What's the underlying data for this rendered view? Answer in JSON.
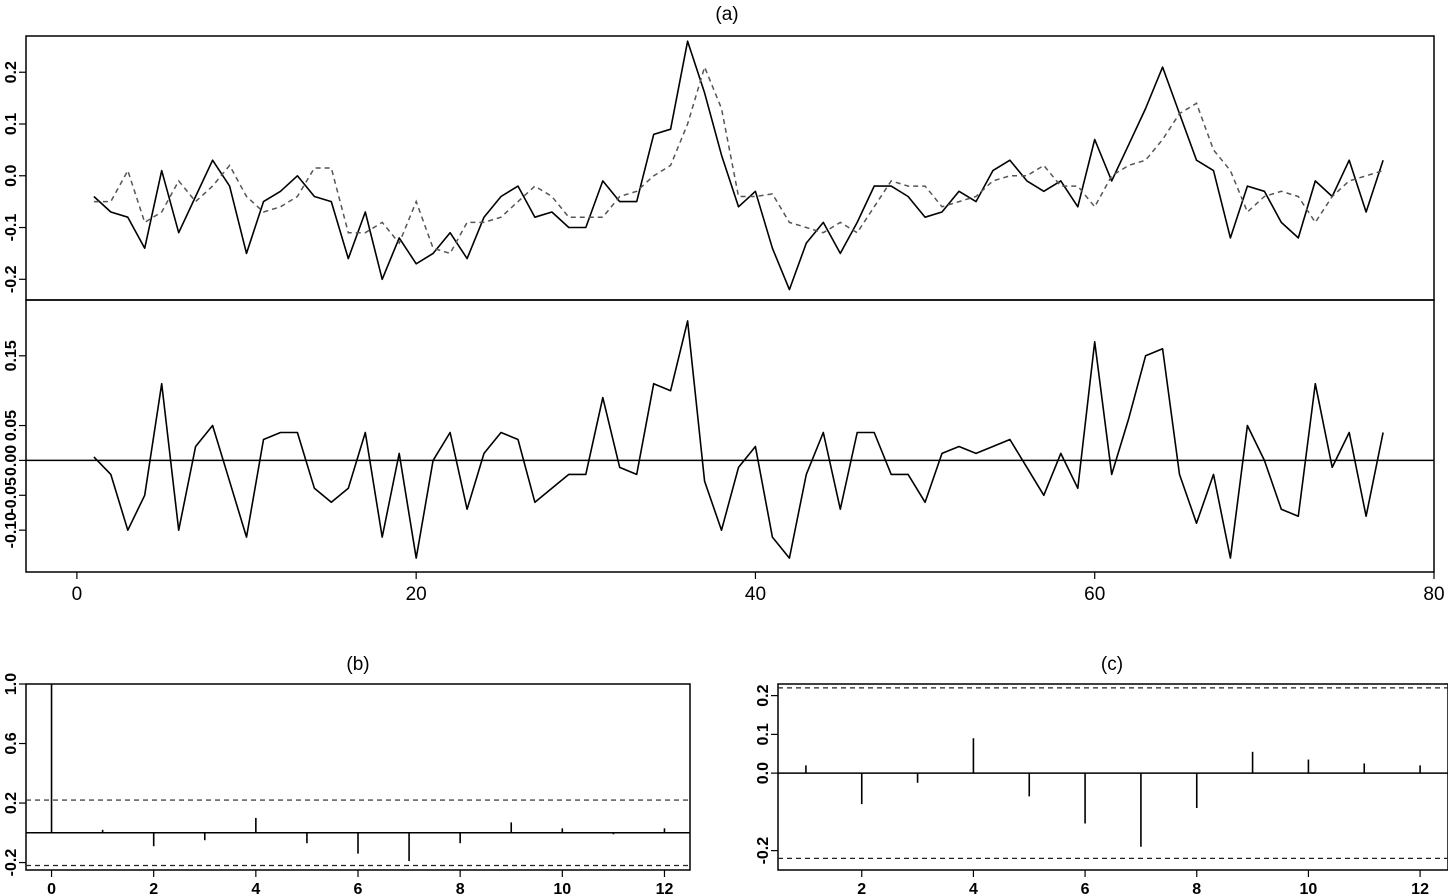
{
  "chart_data": [
    {
      "id": "a",
      "type": "line",
      "title": "(a)",
      "ylim": [
        -0.24,
        0.27
      ],
      "yticks": [
        -0.2,
        -0.1,
        0.0,
        0.1,
        0.2
      ],
      "ytick_labels": [
        "-0.2",
        "-0.1",
        "0.0",
        "0.1",
        "0.2"
      ],
      "xlim": [
        -3,
        80
      ],
      "series": [
        {
          "style": "solid",
          "x": [
            1,
            2,
            3,
            4,
            5,
            6,
            7,
            8,
            9,
            10,
            11,
            12,
            13,
            14,
            15,
            16,
            17,
            18,
            19,
            20,
            21,
            22,
            23,
            24,
            25,
            26,
            27,
            28,
            29,
            30,
            31,
            32,
            33,
            34,
            35,
            36,
            37,
            38,
            39,
            40,
            41,
            42,
            43,
            44,
            45,
            46,
            47,
            48,
            49,
            50,
            51,
            52,
            53,
            54,
            55,
            56,
            57,
            58,
            59,
            60,
            61,
            62,
            63,
            64,
            65,
            66,
            67,
            68,
            69,
            70,
            71,
            72,
            73,
            74,
            75,
            76,
            77
          ],
          "y": [
            -0.04,
            -0.07,
            -0.08,
            -0.14,
            0.01,
            -0.11,
            -0.04,
            0.03,
            -0.02,
            -0.15,
            -0.05,
            -0.03,
            0.0,
            -0.04,
            -0.05,
            -0.16,
            -0.07,
            -0.2,
            -0.12,
            -0.17,
            -0.15,
            -0.11,
            -0.16,
            -0.08,
            -0.04,
            -0.02,
            -0.08,
            -0.07,
            -0.1,
            -0.1,
            -0.01,
            -0.05,
            -0.05,
            0.08,
            0.09,
            0.26,
            0.16,
            0.04,
            -0.06,
            -0.03,
            -0.14,
            -0.22,
            -0.13,
            -0.09,
            -0.15,
            -0.09,
            -0.02,
            -0.02,
            -0.04,
            -0.08,
            -0.07,
            -0.03,
            -0.05,
            0.01,
            0.03,
            -0.01,
            -0.03,
            -0.01,
            -0.06,
            0.07,
            -0.01,
            0.06,
            0.13,
            0.21,
            0.12,
            0.03,
            0.01,
            -0.12,
            -0.02,
            -0.03,
            -0.09,
            -0.12,
            -0.01,
            -0.04,
            0.03,
            -0.07,
            0.03
          ]
        },
        {
          "style": "dashed",
          "x": [
            1,
            2,
            3,
            4,
            5,
            6,
            7,
            8,
            9,
            10,
            11,
            12,
            13,
            14,
            15,
            16,
            17,
            18,
            19,
            20,
            21,
            22,
            23,
            24,
            25,
            26,
            27,
            28,
            29,
            30,
            31,
            32,
            33,
            34,
            35,
            36,
            37,
            38,
            39,
            40,
            41,
            42,
            43,
            44,
            45,
            46,
            47,
            48,
            49,
            50,
            51,
            52,
            53,
            54,
            55,
            56,
            57,
            58,
            59,
            60,
            61,
            62,
            63,
            64,
            65,
            66,
            67,
            68,
            69,
            70,
            71,
            72,
            73,
            74,
            75,
            76,
            77
          ],
          "y": [
            -0.05,
            -0.05,
            0.01,
            -0.09,
            -0.07,
            -0.01,
            -0.05,
            -0.02,
            0.02,
            -0.04,
            -0.07,
            -0.06,
            -0.04,
            0.015,
            0.015,
            -0.11,
            -0.11,
            -0.09,
            -0.13,
            -0.05,
            -0.14,
            -0.15,
            -0.09,
            -0.09,
            -0.08,
            -0.05,
            -0.02,
            -0.04,
            -0.08,
            -0.08,
            -0.08,
            -0.04,
            -0.03,
            0.0,
            0.02,
            0.1,
            0.21,
            0.13,
            -0.04,
            -0.04,
            -0.035,
            -0.09,
            -0.1,
            -0.11,
            -0.09,
            -0.11,
            -0.06,
            -0.01,
            -0.02,
            -0.02,
            -0.06,
            -0.05,
            -0.04,
            -0.01,
            0.0,
            0.0,
            0.02,
            -0.02,
            -0.02,
            -0.06,
            0.0,
            0.02,
            0.03,
            0.07,
            0.12,
            0.14,
            0.05,
            0.01,
            -0.07,
            -0.04,
            -0.03,
            -0.04,
            -0.09,
            -0.04,
            -0.01,
            0.0,
            0.01
          ]
        }
      ]
    },
    {
      "id": "a2",
      "type": "line",
      "ylim": [
        -0.16,
        0.23
      ],
      "yticks": [
        -0.1,
        -0.05,
        0.0,
        0.05,
        0.15
      ],
      "ytick_labels": [
        "-0.10",
        "-0.05",
        "0.00",
        "0.05",
        "0.15"
      ],
      "xlim": [
        -3,
        80
      ],
      "xticks": [
        0,
        20,
        40,
        60,
        80
      ],
      "xtick_labels": [
        "0",
        "20",
        "40",
        "60",
        "80"
      ],
      "hline": 0,
      "series": [
        {
          "style": "solid",
          "x": [
            1,
            2,
            3,
            4,
            5,
            6,
            7,
            8,
            9,
            10,
            11,
            12,
            13,
            14,
            15,
            16,
            17,
            18,
            19,
            20,
            21,
            22,
            23,
            24,
            25,
            26,
            27,
            28,
            29,
            30,
            31,
            32,
            33,
            34,
            35,
            36,
            37,
            38,
            39,
            40,
            41,
            42,
            43,
            44,
            45,
            46,
            47,
            48,
            49,
            50,
            51,
            52,
            53,
            54,
            55,
            56,
            57,
            58,
            59,
            60,
            61,
            62,
            63,
            64,
            65,
            66,
            67,
            68,
            69,
            70,
            71,
            72,
            73,
            74,
            75,
            76,
            77
          ],
          "y": [
            0.005,
            -0.02,
            -0.1,
            -0.05,
            0.11,
            -0.1,
            0.02,
            0.05,
            -0.03,
            -0.11,
            0.03,
            0.04,
            0.04,
            -0.04,
            -0.06,
            -0.04,
            0.04,
            -0.11,
            0.01,
            -0.14,
            0.0,
            0.04,
            -0.07,
            0.01,
            0.04,
            0.03,
            -0.06,
            -0.04,
            -0.02,
            -0.02,
            0.09,
            -0.01,
            -0.02,
            0.11,
            0.1,
            0.2,
            -0.03,
            -0.1,
            -0.01,
            0.02,
            -0.11,
            -0.14,
            -0.02,
            0.04,
            -0.07,
            0.04,
            0.04,
            -0.02,
            -0.02,
            -0.06,
            0.01,
            0.02,
            0.01,
            0.02,
            0.03,
            -0.01,
            -0.05,
            0.01,
            -0.04,
            0.17,
            -0.02,
            0.06,
            0.15,
            0.16,
            -0.02,
            -0.09,
            -0.02,
            -0.14,
            0.05,
            0.0,
            -0.07,
            -0.08,
            0.11,
            -0.01,
            0.04,
            -0.08,
            0.04
          ]
        }
      ]
    },
    {
      "id": "b",
      "type": "bar",
      "title": "(b)",
      "xlim": [
        -0.5,
        12.5
      ],
      "ylim": [
        -0.25,
        1.0
      ],
      "yticks": [
        -0.2,
        0.2,
        0.6,
        1.0
      ],
      "ytick_labels": [
        "-0.2",
        "0.2",
        "0.6",
        "1.0"
      ],
      "xticks": [
        0,
        2,
        4,
        6,
        8,
        10,
        12
      ],
      "xtick_labels": [
        "0",
        "2",
        "4",
        "6",
        "8",
        "10",
        "12"
      ],
      "confidence": 0.22,
      "lags": [
        0,
        1,
        2,
        3,
        4,
        5,
        6,
        7,
        8,
        9,
        10,
        11,
        12
      ],
      "values": [
        1.0,
        0.02,
        -0.09,
        -0.05,
        0.1,
        -0.07,
        -0.14,
        -0.19,
        -0.07,
        0.07,
        0.03,
        -0.01,
        0.03
      ]
    },
    {
      "id": "c",
      "type": "bar",
      "title": "(c)",
      "xlim": [
        0.5,
        12.5
      ],
      "ylim": [
        -0.25,
        0.23
      ],
      "yticks": [
        -0.2,
        0.0,
        0.1,
        0.2
      ],
      "ytick_labels": [
        "-0.2",
        "0.0",
        "0.1",
        "0.2"
      ],
      "xticks": [
        2,
        4,
        6,
        8,
        10,
        12
      ],
      "xtick_labels": [
        "2",
        "4",
        "6",
        "8",
        "10",
        "12"
      ],
      "confidence": 0.22,
      "lags": [
        1,
        2,
        3,
        4,
        5,
        6,
        7,
        8,
        9,
        10,
        11,
        12
      ],
      "values": [
        0.02,
        -0.08,
        -0.025,
        0.09,
        -0.06,
        -0.13,
        -0.19,
        -0.09,
        0.055,
        0.035,
        0.025,
        0.02
      ]
    }
  ]
}
